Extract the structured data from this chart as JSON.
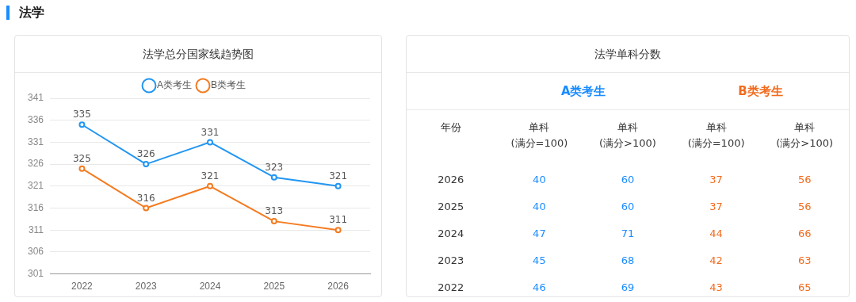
{
  "chart_data": [
    {
      "type": "line",
      "title": "法学总分国家线趋势图",
      "annotations": [
        "法学"
      ],
      "categories": [
        "2022",
        "2023",
        "2024",
        "2025",
        "2026"
      ],
      "series": [
        {
          "name": "A类考生",
          "color": "#2196f3",
          "values": [
            335,
            326,
            331,
            323,
            321
          ]
        },
        {
          "name": "B类考生",
          "color": "#f47b20",
          "values": [
            325,
            316,
            321,
            313,
            311
          ]
        }
      ],
      "ylim": [
        301,
        341
      ],
      "yticks": [
        301,
        306,
        311,
        316,
        321,
        326,
        331,
        336,
        341
      ],
      "grid": "y",
      "legend": "top",
      "marker": "circle",
      "line_style": "solid",
      "data_labels": true
    },
    {
      "type": "heatmap",
      "title": "法学单科分数",
      "ylabel": "年份",
      "annotations": [
        "A类考生",
        "B类考生"
      ],
      "categories": [
        "单科 (满分=100)",
        "单科 (满分>100)",
        "单科 (满分=100)",
        "单科 (满分>100)"
      ],
      "colors": [
        "#1a8cff",
        "#1a8cff",
        "#f26b1d",
        "#f26b1d"
      ],
      "y_categories": [
        "2026",
        "2025",
        "2024",
        "2023",
        "2022"
      ],
      "cells": [
        [
          40,
          60,
          37,
          56
        ],
        [
          40,
          60,
          37,
          56
        ],
        [
          47,
          71,
          44,
          66
        ],
        [
          45,
          68,
          42,
          63
        ],
        [
          46,
          69,
          43,
          65
        ]
      ],
      "data_labels": true
    }
  ]
}
